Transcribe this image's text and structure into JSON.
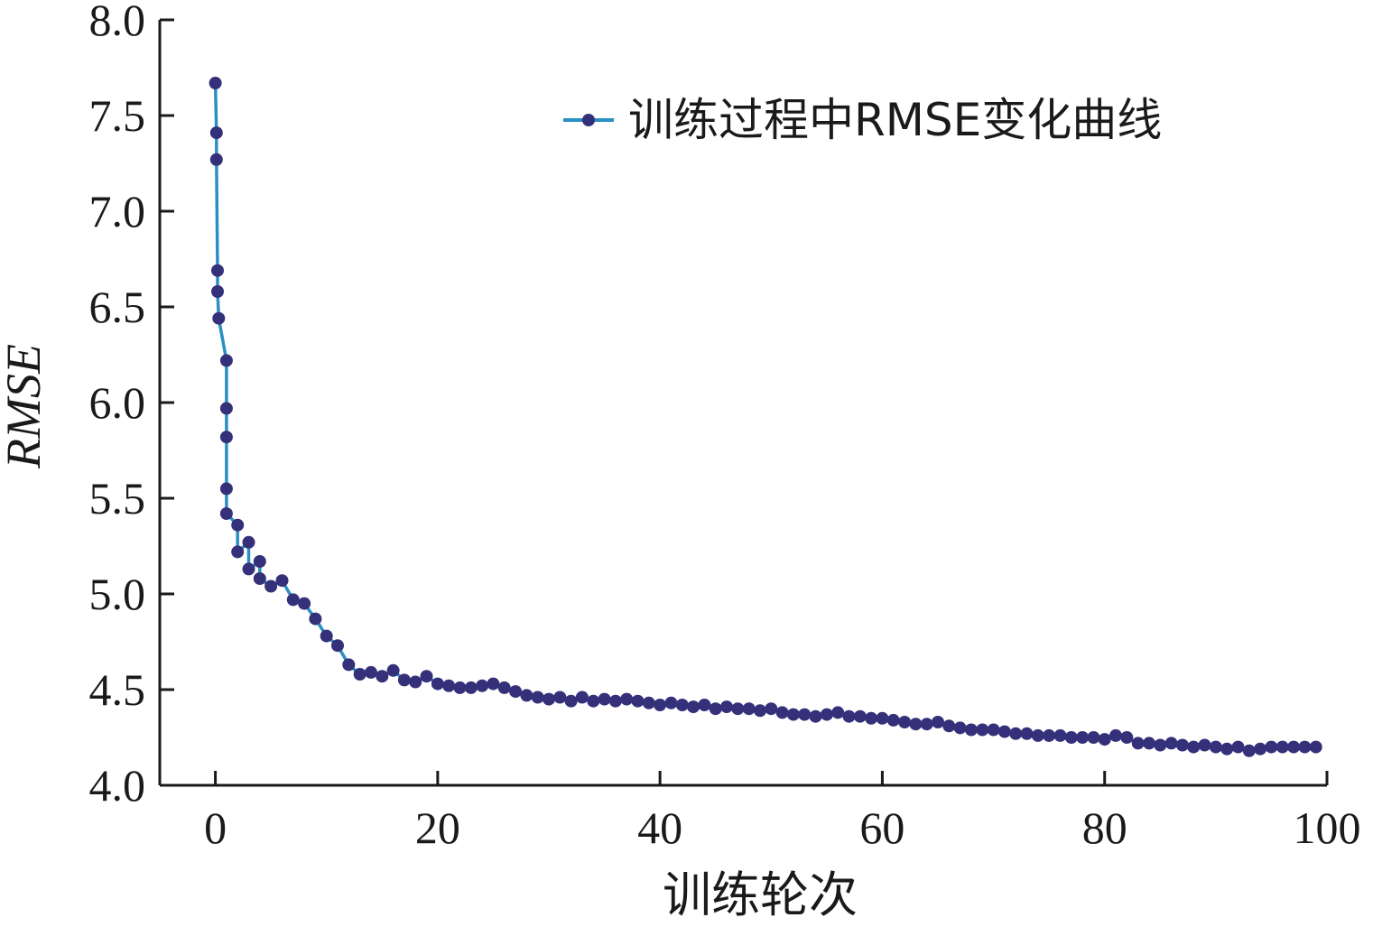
{
  "chart_data": {
    "type": "line",
    "xlabel": "训练轮次",
    "ylabel": "RMSE",
    "xlim": [
      -5,
      100
    ],
    "ylim": [
      4.0,
      8.0
    ],
    "xticks": [
      "0",
      "20",
      "40",
      "60",
      "80",
      "100"
    ],
    "yticks": [
      "4.0",
      "4.5",
      "5.0",
      "5.5",
      "6.0",
      "6.5",
      "7.0",
      "7.5",
      "8.0"
    ],
    "legend_position": "top-right",
    "colors": {
      "line": "#2a8fc4",
      "marker": "#34307a"
    },
    "series": [
      {
        "name": "训练过程中RMSE变化曲线",
        "x": [
          0,
          0.1,
          0.1,
          0.2,
          0.2,
          0.3,
          1,
          1,
          1,
          1,
          1,
          2,
          2,
          3,
          3,
          4,
          4,
          5,
          6,
          7,
          8,
          9,
          10,
          11,
          12,
          13,
          14,
          15,
          16,
          17,
          18,
          19,
          20,
          21,
          22,
          23,
          24,
          25,
          26,
          27,
          28,
          29,
          30,
          31,
          32,
          33,
          34,
          35,
          36,
          37,
          38,
          39,
          40,
          41,
          42,
          43,
          44,
          45,
          46,
          47,
          48,
          49,
          50,
          51,
          52,
          53,
          54,
          55,
          56,
          57,
          58,
          59,
          60,
          61,
          62,
          63,
          64,
          65,
          66,
          67,
          68,
          69,
          70,
          71,
          72,
          73,
          74,
          75,
          76,
          77,
          78,
          79,
          80,
          81,
          82,
          83,
          84,
          85,
          86,
          87,
          88,
          89,
          90,
          91,
          92,
          93,
          94,
          95,
          96,
          97,
          98,
          99
        ],
        "y": [
          7.67,
          7.41,
          7.27,
          6.69,
          6.58,
          6.44,
          6.22,
          5.97,
          5.82,
          5.55,
          5.42,
          5.36,
          5.22,
          5.27,
          5.13,
          5.17,
          5.08,
          5.04,
          5.07,
          4.97,
          4.95,
          4.87,
          4.78,
          4.73,
          4.63,
          4.58,
          4.59,
          4.57,
          4.6,
          4.55,
          4.54,
          4.57,
          4.53,
          4.52,
          4.51,
          4.51,
          4.52,
          4.53,
          4.51,
          4.49,
          4.47,
          4.46,
          4.45,
          4.46,
          4.44,
          4.46,
          4.44,
          4.45,
          4.44,
          4.45,
          4.44,
          4.43,
          4.42,
          4.43,
          4.42,
          4.41,
          4.42,
          4.4,
          4.41,
          4.4,
          4.4,
          4.39,
          4.4,
          4.38,
          4.37,
          4.37,
          4.36,
          4.37,
          4.38,
          4.36,
          4.36,
          4.35,
          4.35,
          4.34,
          4.33,
          4.32,
          4.32,
          4.33,
          4.31,
          4.3,
          4.29,
          4.29,
          4.29,
          4.28,
          4.27,
          4.27,
          4.26,
          4.26,
          4.26,
          4.25,
          4.25,
          4.25,
          4.24,
          4.26,
          4.25,
          4.22,
          4.22,
          4.21,
          4.22,
          4.21,
          4.2,
          4.21,
          4.2,
          4.19,
          4.2,
          4.18,
          4.19,
          4.2,
          4.2,
          4.2,
          4.2,
          4.2
        ]
      }
    ]
  }
}
